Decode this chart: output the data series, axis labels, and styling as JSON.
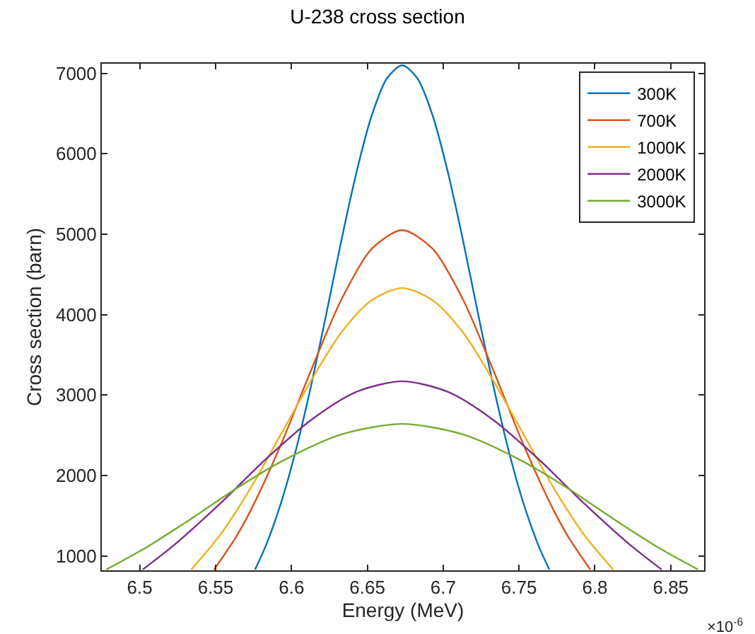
{
  "chart_data": {
    "type": "line",
    "title": "U-238 cross section",
    "xlabel": "Energy (MeV)",
    "ylabel": "Cross section (barn)",
    "annotations": [
      "×10$^{-6}$"
    ],
    "xlim": [
      6.475,
      6.872
    ],
    "xticks": [
      6.5,
      6.55,
      6.6,
      6.65,
      6.7,
      6.75,
      6.8,
      6.85
    ],
    "ylim": [
      820,
      7120
    ],
    "yticks": [
      1000,
      2000,
      3000,
      4000,
      5000,
      6000,
      7000
    ],
    "legend": "top right",
    "marker": "none",
    "line_style": "solid",
    "series": [
      {
        "name": "300K",
        "color": "#0072bd",
        "x": [
          6.576,
          6.583,
          6.593,
          6.603,
          6.613,
          6.623,
          6.633,
          6.643,
          6.653,
          6.663,
          6.673,
          6.683,
          6.693,
          6.703,
          6.713,
          6.723,
          6.733,
          6.743,
          6.753,
          6.763,
          6.77
        ],
        "values": [
          830,
          1120,
          1650,
          2320,
          3120,
          4010,
          4930,
          5780,
          6480,
          6940,
          7100,
          6940,
          6480,
          5780,
          4930,
          4010,
          3120,
          2320,
          1650,
          1120,
          830
        ]
      },
      {
        "name": "700K",
        "color": "#d95319",
        "x": [
          6.549,
          6.563,
          6.573,
          6.593,
          6.613,
          6.633,
          6.653,
          6.673,
          6.693,
          6.713,
          6.733,
          6.753,
          6.773,
          6.783,
          6.797
        ],
        "values": [
          830,
          1220,
          1560,
          2380,
          3310,
          4190,
          4820,
          5050,
          4820,
          4190,
          3310,
          2380,
          1560,
          1220,
          830
        ]
      },
      {
        "name": "1000K",
        "color": "#edb120",
        "x": [
          6.534,
          6.553,
          6.573,
          6.593,
          6.613,
          6.633,
          6.653,
          6.673,
          6.693,
          6.713,
          6.733,
          6.753,
          6.773,
          6.793,
          6.812
        ],
        "values": [
          830,
          1260,
          1840,
          2510,
          3180,
          3780,
          4180,
          4330,
          4180,
          3780,
          3180,
          2510,
          1840,
          1260,
          830
        ]
      },
      {
        "name": "2000K",
        "color": "#7e2f8e",
        "x": [
          6.502,
          6.523,
          6.553,
          6.583,
          6.613,
          6.643,
          6.673,
          6.703,
          6.733,
          6.763,
          6.793,
          6.823,
          6.844
        ],
        "values": [
          830,
          1140,
          1650,
          2200,
          2690,
          3040,
          3170,
          3040,
          2690,
          2200,
          1650,
          1140,
          830
        ]
      },
      {
        "name": "3000K",
        "color": "#77ac30",
        "x": [
          6.478,
          6.503,
          6.533,
          6.563,
          6.593,
          6.633,
          6.673,
          6.713,
          6.753,
          6.783,
          6.813,
          6.843,
          6.868
        ],
        "values": [
          830,
          1090,
          1450,
          1830,
          2170,
          2510,
          2640,
          2510,
          2170,
          1830,
          1450,
          1090,
          830
        ]
      }
    ]
  }
}
